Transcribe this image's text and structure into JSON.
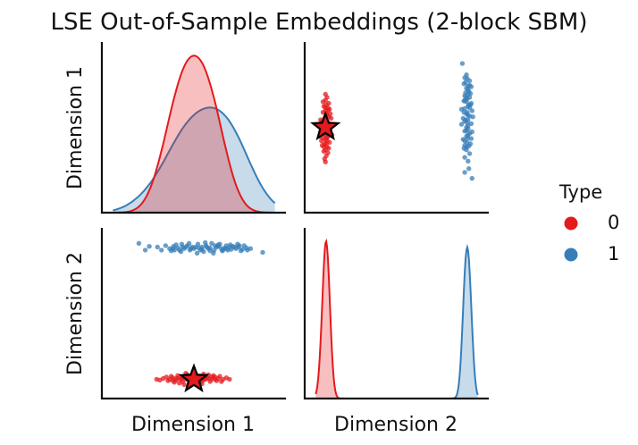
{
  "chart_data": {
    "type": "scatter",
    "title": "LSE Out-of-Sample Embeddings (2-block SBM)",
    "xlabels": [
      "Dimension 1",
      "Dimension 2"
    ],
    "ylabels": [
      "Dimension 1",
      "Dimension 2"
    ],
    "legend": {
      "title": "Type",
      "entries": [
        {
          "label": "0",
          "color": "#e41a1c"
        },
        {
          "label": "1",
          "color": "#377eb8"
        }
      ],
      "placement": "right"
    },
    "ranges": {
      "dim1": [
        -1.0,
        1.0
      ],
      "dim2": [
        -1.0,
        1.0
      ]
    },
    "grid": false,
    "marker": {
      "type": "star",
      "dim1": 0.0,
      "dim2": -0.88,
      "color": "#e41a1c"
    },
    "series": [
      {
        "label": "0",
        "color": "#e41a1c",
        "points": [
          [
            -0.05,
            -0.86
          ],
          [
            0.05,
            -0.87
          ],
          [
            0.1,
            -0.88
          ],
          [
            -0.1,
            -0.88
          ],
          [
            0.18,
            -0.87
          ],
          [
            -0.18,
            -0.86
          ],
          [
            0.02,
            -0.9
          ],
          [
            -0.02,
            -0.84
          ],
          [
            0.22,
            -0.88
          ],
          [
            -0.22,
            -0.89
          ],
          [
            0.3,
            -0.87
          ],
          [
            -0.3,
            -0.88
          ],
          [
            0.08,
            -0.92
          ],
          [
            -0.08,
            -0.82
          ],
          [
            0.14,
            -0.84
          ],
          [
            -0.14,
            -0.91
          ],
          [
            0.26,
            -0.85
          ],
          [
            -0.26,
            -0.86
          ],
          [
            0.36,
            -0.88
          ],
          [
            -0.38,
            -0.87
          ],
          [
            0.0,
            -0.86
          ],
          [
            0.12,
            -0.89
          ],
          [
            -0.12,
            -0.85
          ],
          [
            0.2,
            -0.91
          ],
          [
            -0.2,
            -0.83
          ],
          [
            0.04,
            -0.83
          ],
          [
            -0.04,
            -0.93
          ],
          [
            0.16,
            -0.86
          ],
          [
            -0.16,
            -0.88
          ],
          [
            0.28,
            -0.9
          ],
          [
            -0.28,
            -0.84
          ],
          [
            0.4,
            -0.86
          ],
          [
            -0.42,
            -0.89
          ],
          [
            0.06,
            -0.85
          ],
          [
            -0.06,
            -0.89
          ],
          [
            0.24,
            -0.83
          ],
          [
            -0.24,
            -0.92
          ],
          [
            0.1,
            -0.94
          ],
          [
            -0.1,
            -0.8
          ],
          [
            0.32,
            -0.84
          ],
          [
            -0.32,
            -0.9
          ],
          [
            0.44,
            -0.88
          ],
          [
            -0.46,
            -0.88
          ],
          [
            0.02,
            -0.88
          ],
          [
            -0.02,
            -0.87
          ],
          [
            0.18,
            -0.82
          ],
          [
            -0.18,
            -0.93
          ],
          [
            0.08,
            -0.86
          ],
          [
            -0.08,
            -0.88
          ],
          [
            0.34,
            -0.91
          ],
          [
            -0.34,
            -0.85
          ],
          [
            0.12,
            -0.81
          ],
          [
            -0.12,
            -0.95
          ],
          [
            0.22,
            -0.85
          ],
          [
            -0.22,
            -0.87
          ],
          [
            0.0,
            -0.91
          ],
          [
            0.14,
            -0.88
          ],
          [
            -0.14,
            -0.86
          ],
          [
            0.26,
            -0.88
          ],
          [
            -0.26,
            -0.9
          ]
        ],
        "dim1_hist_note": ""
      },
      {
        "label": "1",
        "color": "#377eb8",
        "points": [
          [
            0.1,
            0.88
          ],
          [
            0.2,
            0.87
          ],
          [
            0.0,
            0.86
          ],
          [
            0.3,
            0.89
          ],
          [
            -0.1,
            0.88
          ],
          [
            0.4,
            0.86
          ],
          [
            -0.2,
            0.87
          ],
          [
            0.5,
            0.88
          ],
          [
            -0.3,
            0.86
          ],
          [
            0.6,
            0.85
          ],
          [
            -0.4,
            0.84
          ],
          [
            0.15,
            0.9
          ],
          [
            0.25,
            0.84
          ],
          [
            0.05,
            0.92
          ],
          [
            0.35,
            0.83
          ],
          [
            -0.05,
            0.84
          ],
          [
            0.45,
            0.91
          ],
          [
            -0.15,
            0.92
          ],
          [
            0.55,
            0.88
          ],
          [
            -0.25,
            0.89
          ],
          [
            0.65,
            0.87
          ],
          [
            -0.35,
            0.9
          ],
          [
            0.12,
            0.82
          ],
          [
            0.22,
            0.93
          ],
          [
            0.02,
            0.88
          ],
          [
            0.32,
            0.92
          ],
          [
            -0.08,
            0.9
          ],
          [
            0.42,
            0.84
          ],
          [
            -0.18,
            0.84
          ],
          [
            0.52,
            0.86
          ],
          [
            -0.28,
            0.83
          ],
          [
            0.62,
            0.9
          ],
          [
            -0.45,
            0.88
          ],
          [
            0.18,
            0.86
          ],
          [
            0.28,
            0.88
          ],
          [
            0.08,
            0.84
          ],
          [
            0.38,
            0.87
          ],
          [
            -0.02,
            0.88
          ],
          [
            0.48,
            0.89
          ],
          [
            -0.12,
            0.86
          ],
          [
            0.58,
            0.83
          ],
          [
            -0.22,
            0.91
          ],
          [
            0.7,
            0.86
          ],
          [
            -0.55,
            0.89
          ],
          [
            0.14,
            0.94
          ],
          [
            0.24,
            0.8
          ],
          [
            0.04,
            0.8
          ],
          [
            0.34,
            0.86
          ],
          [
            -0.06,
            0.93
          ],
          [
            0.44,
            0.88
          ],
          [
            -0.16,
            0.82
          ],
          [
            0.54,
            0.92
          ],
          [
            -0.26,
            0.86
          ],
          [
            0.66,
            0.84
          ],
          [
            -0.6,
            0.84
          ],
          [
            0.85,
            0.81
          ],
          [
            -0.68,
            0.93
          ],
          [
            0.16,
            0.88
          ],
          [
            0.26,
            0.9
          ],
          [
            0.06,
            0.87
          ],
          [
            0.36,
            0.84
          ],
          [
            -0.04,
            0.86
          ],
          [
            0.46,
            0.85
          ],
          [
            -0.14,
            0.88
          ],
          [
            0.56,
            0.9
          ],
          [
            -0.24,
            0.84
          ],
          [
            0.2,
            0.83
          ],
          [
            0.3,
            0.91
          ],
          [
            0.1,
            0.85
          ],
          [
            0.4,
            0.9
          ]
        ]
      }
    ]
  }
}
